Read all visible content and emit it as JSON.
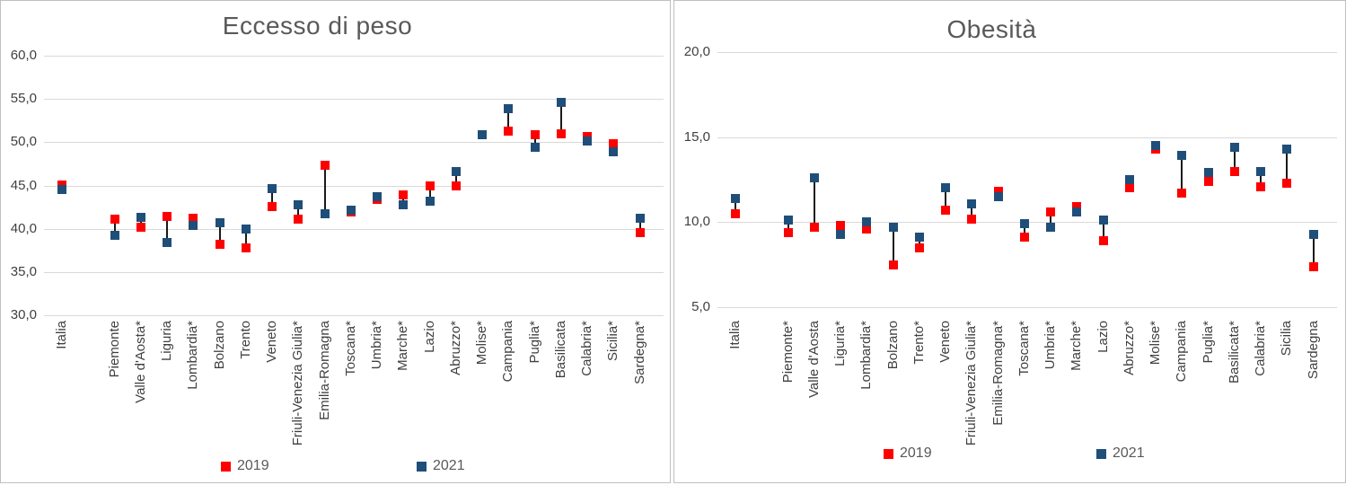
{
  "chart_data": [
    {
      "type": "scatter",
      "title": "Eccesso di peso",
      "categories": [
        "Italia",
        "Piemonte",
        "Valle d'Aosta*",
        "Liguria",
        "Lombardia*",
        "Bolzano",
        "Trento",
        "Veneto",
        "Friuli-Venezia Giulia*",
        "Emilia-Romagna",
        "Toscana*",
        "Umbria*",
        "Marche*",
        "Lazio",
        "Abruzzo*",
        "Molise*",
        "Campania",
        "Puglia*",
        "Basilicata",
        "Calabria*",
        "Sicilia*",
        "Sardegna*"
      ],
      "series": [
        {
          "name": "2019",
          "color": "#FF0000",
          "values": [
            45.1,
            41.1,
            40.2,
            41.4,
            41.2,
            38.2,
            37.8,
            42.6,
            41.1,
            47.3,
            41.9,
            43.4,
            43.9,
            45.0,
            45.0,
            50.9,
            51.3,
            50.9,
            51.0,
            50.7,
            49.8,
            39.6
          ]
        },
        {
          "name": "2021",
          "color": "#1F4E79",
          "values": [
            44.5,
            39.2,
            41.3,
            38.4,
            40.4,
            40.7,
            40.0,
            44.6,
            42.8,
            41.7,
            42.1,
            43.7,
            42.8,
            43.2,
            46.6,
            50.9,
            53.9,
            49.4,
            54.6,
            50.1,
            48.9,
            41.2
          ]
        }
      ],
      "ylim": [
        30,
        60
      ],
      "ytick_step": 5,
      "yticks": [
        "30,0",
        "35,0",
        "40,0",
        "45,0",
        "50,0",
        "55,0",
        "60,0"
      ],
      "grid": true,
      "legend_position": "bottom"
    },
    {
      "type": "scatter",
      "title": "Obesità",
      "categories": [
        "Italia",
        "Piemonte*",
        "Valle d'Aosta",
        "Liguria*",
        "Lombardia*",
        "Bolzano",
        "Trento*",
        "Veneto",
        "Friuli-Venezia Giulia*",
        "Emilia-Romagna*",
        "Toscana*",
        "Umbria*",
        "Marche*",
        "Lazio",
        "Abruzzo*",
        "Molise*",
        "Campania",
        "Puglia*",
        "Basilicata*",
        "Calabria*",
        "Sicilia",
        "Sardegna"
      ],
      "series": [
        {
          "name": "2019",
          "color": "#FF0000",
          "values": [
            10.5,
            9.4,
            9.7,
            9.8,
            9.6,
            7.5,
            8.5,
            10.7,
            10.2,
            11.8,
            9.1,
            10.6,
            10.9,
            8.9,
            12.0,
            14.3,
            11.7,
            12.4,
            13.0,
            12.1,
            12.3,
            7.4
          ]
        },
        {
          "name": "2021",
          "color": "#1F4E79",
          "values": [
            11.4,
            10.1,
            12.6,
            9.3,
            10.0,
            9.7,
            9.1,
            12.0,
            11.1,
            11.5,
            9.9,
            9.7,
            10.6,
            10.1,
            12.5,
            14.5,
            13.9,
            12.9,
            14.4,
            13.0,
            14.3,
            9.3
          ]
        }
      ],
      "ylim": [
        5,
        20
      ],
      "ytick_step": 5,
      "yticks": [
        "5,0",
        "10,0",
        "15,0",
        "20,0"
      ],
      "grid": true,
      "legend_position": "bottom"
    }
  ],
  "styles": {
    "marker_2019": "#FF0000",
    "marker_2021": "#1F4E79",
    "gridline": "#D9D9D9",
    "title_text": "#595959",
    "axis_text": "#404040",
    "connector": "#1A1A1A"
  }
}
